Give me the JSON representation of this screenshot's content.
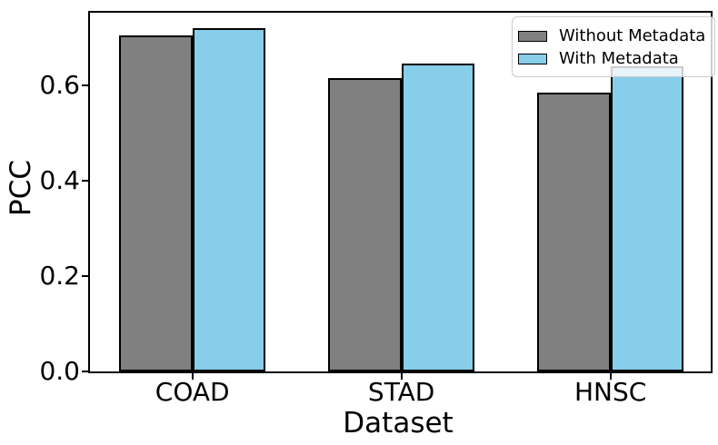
{
  "chart_data": {
    "type": "bar",
    "title": "",
    "xlabel": "Dataset",
    "ylabel": "PCC",
    "categories": [
      "COAD",
      "STAD",
      "HNSC"
    ],
    "series": [
      {
        "name": "Without Metadata",
        "color": "#808080",
        "values": [
          0.705,
          0.615,
          0.585
        ]
      },
      {
        "name": "With Metadata",
        "color": "#87CEEB",
        "values": [
          0.72,
          0.645,
          0.64
        ]
      }
    ],
    "edge_color": "#000000",
    "bar_width": 0.35,
    "yticks": [
      0.0,
      0.2,
      0.4,
      0.6
    ],
    "ytick_decimals": 1,
    "ylim": [
      0,
      0.752
    ],
    "xlim": [
      -0.49,
      2.48
    ],
    "grid": false,
    "legend_position": "upper right"
  }
}
